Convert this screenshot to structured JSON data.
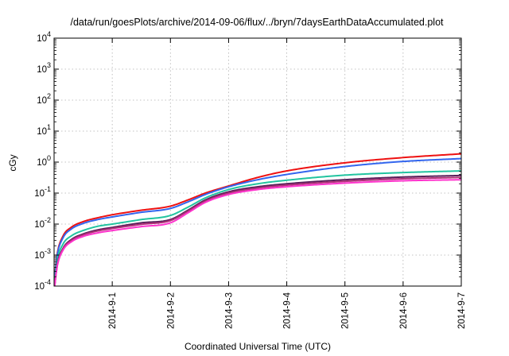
{
  "chart_data": {
    "type": "line",
    "title": "/data/run/goesPlots/archive/2014-09-06/flux/../bryn/7daysEarthDataAccumulated.plot",
    "xlabel": "Coordinated Universal Time (UTC)",
    "ylabel": "cGy",
    "yscale": "log",
    "ylim": [
      0.0001,
      10000
    ],
    "xlim": [
      0,
      7
    ],
    "grid": true,
    "legend": "none",
    "x_ticks": [
      {
        "value": 1,
        "label": "2014-9-1"
      },
      {
        "value": 2,
        "label": "2014-9-2"
      },
      {
        "value": 3,
        "label": "2014-9-3"
      },
      {
        "value": 4,
        "label": "2014-9-4"
      },
      {
        "value": 5,
        "label": "2014-9-5"
      },
      {
        "value": 6,
        "label": "2014-9-6"
      },
      {
        "value": 7,
        "label": "2014-9-7"
      }
    ],
    "y_ticks": [
      {
        "value": 0.0001,
        "base": "10",
        "exp": "-4"
      },
      {
        "value": 0.001,
        "base": "10",
        "exp": "-3"
      },
      {
        "value": 0.01,
        "base": "10",
        "exp": "-2"
      },
      {
        "value": 0.1,
        "base": "10",
        "exp": "-1"
      },
      {
        "value": 1,
        "base": "10",
        "exp": "0"
      },
      {
        "value": 10,
        "base": "10",
        "exp": "1"
      },
      {
        "value": 100,
        "base": "10",
        "exp": "2"
      },
      {
        "value": 1000,
        "base": "10",
        "exp": "3"
      },
      {
        "value": 10000,
        "base": "10",
        "exp": "4"
      }
    ],
    "x": [
      0.01,
      0.05,
      0.15,
      0.3,
      0.5,
      0.75,
      1.0,
      1.5,
      2.0,
      2.3,
      2.6,
      3.0,
      3.5,
      4.0,
      5.0,
      6.0,
      7.0
    ],
    "series": [
      {
        "color": "#ee1111",
        "values": [
          0.0002,
          0.001,
          0.004,
          0.008,
          0.012,
          0.016,
          0.02,
          0.028,
          0.038,
          0.06,
          0.1,
          0.17,
          0.32,
          0.52,
          0.95,
          1.4,
          1.85
        ]
      },
      {
        "color": "#3366ee",
        "values": [
          0.00017,
          0.0009,
          0.0035,
          0.007,
          0.0105,
          0.014,
          0.017,
          0.024,
          0.032,
          0.052,
          0.09,
          0.16,
          0.27,
          0.4,
          0.72,
          1.05,
          1.3
        ]
      },
      {
        "color": "#22c4a0",
        "values": [
          0.00012,
          0.0006,
          0.0022,
          0.0042,
          0.0062,
          0.0085,
          0.01,
          0.014,
          0.019,
          0.035,
          0.07,
          0.13,
          0.2,
          0.26,
          0.38,
          0.46,
          0.52
        ]
      },
      {
        "color": "#5a1f5a",
        "values": [
          0.0001,
          0.00045,
          0.0016,
          0.0032,
          0.0048,
          0.0065,
          0.0078,
          0.011,
          0.014,
          0.028,
          0.06,
          0.11,
          0.16,
          0.2,
          0.27,
          0.33,
          0.37
        ]
      },
      {
        "color": "#b03078",
        "values": [
          0.0001,
          0.00042,
          0.0015,
          0.003,
          0.0045,
          0.006,
          0.0072,
          0.0098,
          0.013,
          0.026,
          0.055,
          0.1,
          0.145,
          0.18,
          0.24,
          0.29,
          0.32
        ]
      },
      {
        "color": "#ff33cc",
        "values": [
          0.0001,
          0.0004,
          0.0014,
          0.0027,
          0.004,
          0.0052,
          0.0062,
          0.0083,
          0.011,
          0.023,
          0.05,
          0.09,
          0.13,
          0.16,
          0.21,
          0.25,
          0.27
        ]
      }
    ]
  }
}
